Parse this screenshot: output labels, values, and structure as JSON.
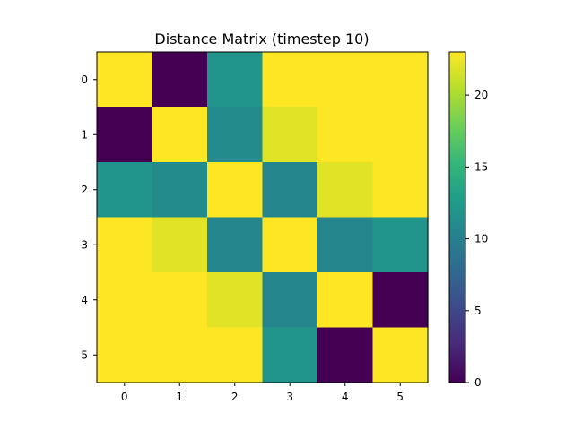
{
  "chart_data": {
    "type": "heatmap",
    "title": "Distance Matrix (timestep 10)",
    "xlabel": "",
    "ylabel": "",
    "x_ticks": [
      "0",
      "1",
      "2",
      "3",
      "4",
      "5"
    ],
    "y_ticks": [
      "0",
      "1",
      "2",
      "3",
      "4",
      "5"
    ],
    "values": [
      [
        23,
        0,
        12,
        23,
        23,
        23
      ],
      [
        0,
        23,
        11,
        22,
        23,
        23
      ],
      [
        12,
        11,
        23,
        10.5,
        22,
        23
      ],
      [
        23,
        22,
        10.5,
        23,
        10.5,
        12
      ],
      [
        23,
        23,
        22,
        10.5,
        23,
        0
      ],
      [
        23,
        23,
        23,
        12,
        0,
        23
      ]
    ],
    "colorbar": {
      "colormap": "viridis",
      "min": 0,
      "max": 23,
      "ticks": [
        "0",
        "5",
        "10",
        "15",
        "20"
      ],
      "tick_values": [
        0,
        5,
        10,
        15,
        20
      ]
    }
  }
}
